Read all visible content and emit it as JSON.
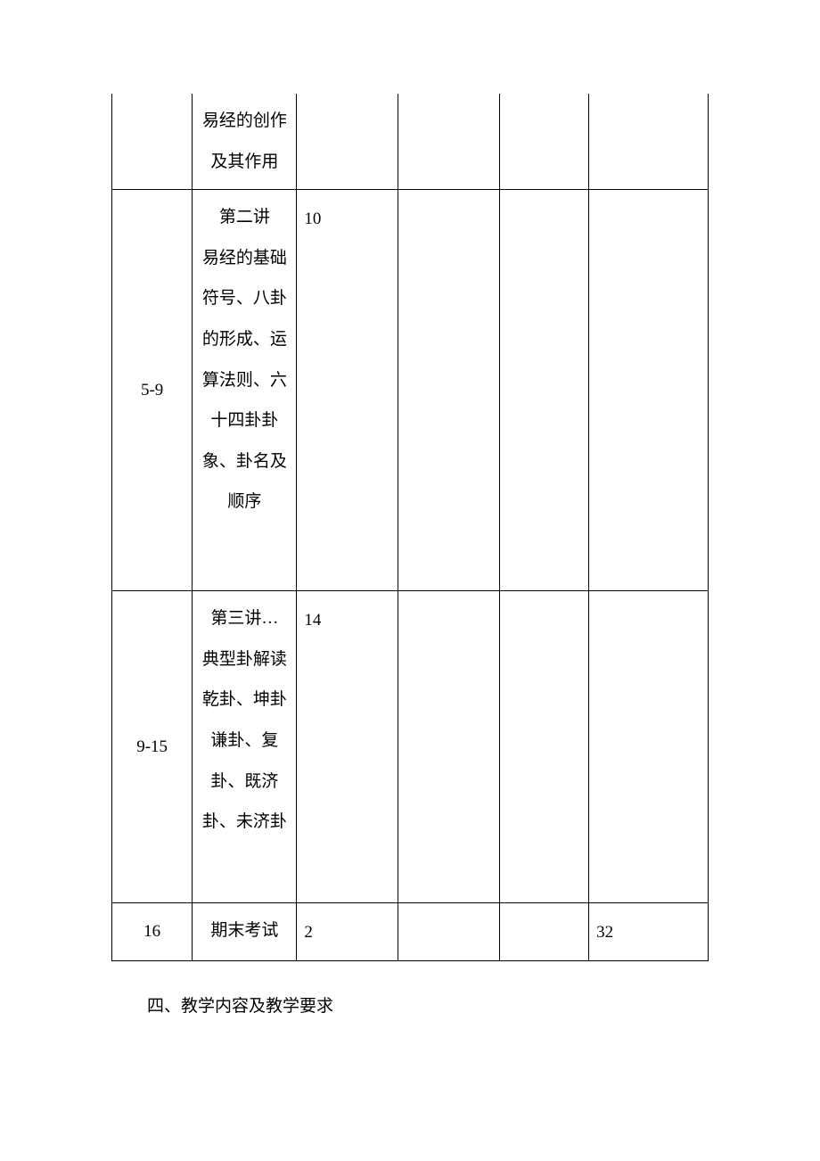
{
  "table": {
    "border_color": "#000000",
    "background_color": "#ffffff",
    "text_color": "#000000",
    "font_size_pt": 14,
    "line_height": 2.4,
    "columns": [
      {
        "width_pct": 13.5,
        "align": "center"
      },
      {
        "width_pct": 17.5,
        "align": "center"
      },
      {
        "width_pct": 17,
        "align": "left"
      },
      {
        "width_pct": 17,
        "align": "left"
      },
      {
        "width_pct": 15,
        "align": "left"
      },
      {
        "width_pct": 20,
        "align": "left"
      }
    ],
    "rows": [
      {
        "col1": "",
        "col2": "易经的创作及其作用",
        "col3": "",
        "col4": "",
        "col5": "",
        "col6": ""
      },
      {
        "col1": "5-9",
        "col2": "第二讲\n易经的基础符号、八卦的形成、运算法则、六十四卦卦象、卦名及顺序",
        "col3": "10",
        "col4": "",
        "col5": "",
        "col6": ""
      },
      {
        "col1": "9-15",
        "col2": "第三讲…\n典型卦解读\n乾卦、坤卦谦卦、复卦、既济卦、未济卦",
        "col3": "14",
        "col4": "",
        "col5": "",
        "col6": ""
      },
      {
        "col1": "16",
        "col2": "期末考试",
        "col3": "2",
        "col4": "",
        "col5": "",
        "col6": "32"
      }
    ]
  },
  "section_heading": "四、教学内容及教学要求"
}
